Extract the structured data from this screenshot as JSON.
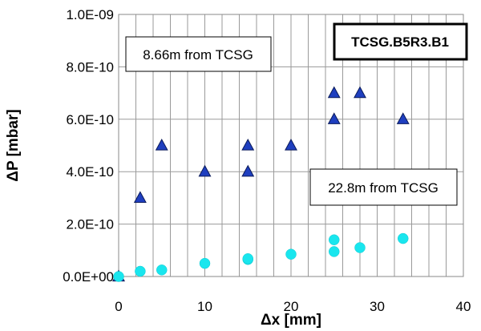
{
  "chart_data": {
    "type": "scatter",
    "title": "",
    "xlabel": "Δx [mm]",
    "ylabel": "ΔP [mbar]",
    "xlim": [
      0,
      40
    ],
    "ylim": [
      0,
      1e-09
    ],
    "grid": true,
    "x_ticks": [
      0,
      10,
      20,
      30,
      40
    ],
    "x_tick_labels": [
      "0",
      "10",
      "20",
      "30",
      "40"
    ],
    "y_ticks": [
      0,
      2e-10,
      4e-10,
      6e-10,
      8e-10,
      1e-09
    ],
    "y_tick_labels": [
      "0.0E+00",
      "2.0E-10",
      "4.0E-10",
      "6.0E-10",
      "8.0E-10",
      "1.0E-09"
    ],
    "series": [
      {
        "name": "8.66m from TCSG",
        "marker": "triangle",
        "color": "#1f3fbf",
        "x": [
          0,
          2.5,
          5,
          10,
          15,
          15,
          20,
          25,
          25,
          28,
          33
        ],
        "y": [
          0,
          3e-10,
          5e-10,
          4e-10,
          5e-10,
          4e-10,
          5e-10,
          7e-10,
          6e-10,
          7e-10,
          6e-10
        ]
      },
      {
        "name": "22.8m from TCSG",
        "marker": "circle",
        "color": "#19e6ee",
        "x": [
          0,
          2.5,
          5,
          10,
          15,
          15,
          20,
          25,
          25,
          28,
          33
        ],
        "y": [
          0,
          2e-11,
          2.5e-11,
          5e-11,
          6.5e-11,
          6.8e-11,
          8.5e-11,
          1.4e-10,
          9.5e-11,
          1.1e-10,
          1.45e-10
        ]
      }
    ],
    "annotations": {
      "top_box": "8.66m from TCSG",
      "bottom_box": "22.8m from TCSG",
      "tag": "TCSG.B5R3.B1"
    }
  }
}
